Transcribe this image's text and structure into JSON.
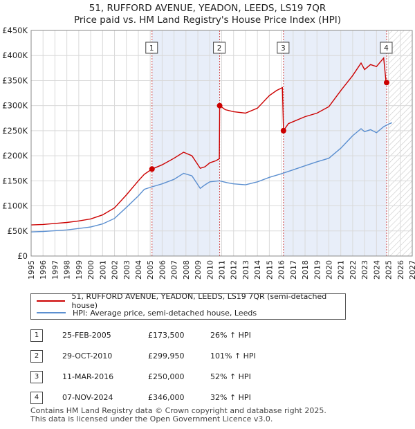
{
  "title_line1": "51, RUFFORD AVENUE, YEADON, LEEDS, LS19 7QR",
  "title_line2": "Price paid vs. HM Land Registry's House Price Index (HPI)",
  "legend": {
    "property": "51, RUFFORD AVENUE, YEADON, LEEDS, LS19 7QR (semi-detached house)",
    "hpi": "HPI: Average price, semi-detached house, Leeds"
  },
  "colors": {
    "property": "#cc0000",
    "hpi": "#5b8fd0",
    "shade": "#e8eef9",
    "grid": "#d9d9d9"
  },
  "sales": [
    {
      "num": "1",
      "date": "25-FEB-2005",
      "price": "£173,500",
      "hpi_change": "26% ↑ HPI"
    },
    {
      "num": "2",
      "date": "29-OCT-2010",
      "price": "£299,950",
      "hpi_change": "101% ↑ HPI"
    },
    {
      "num": "3",
      "date": "11-MAR-2016",
      "price": "£250,000",
      "hpi_change": "52% ↑ HPI"
    },
    {
      "num": "4",
      "date": "07-NOV-2024",
      "price": "£346,000",
      "hpi_change": "32% ↑ HPI"
    }
  ],
  "footer_line1": "Contains HM Land Registry data © Crown copyright and database right 2025.",
  "footer_line2": "This data is licensed under the Open Government Licence v3.0.",
  "chart_data": {
    "type": "line",
    "xlim": [
      1995,
      2027
    ],
    "ylim": [
      0,
      450000
    ],
    "y_ticks": [
      0,
      50000,
      100000,
      150000,
      200000,
      250000,
      300000,
      350000,
      400000,
      450000
    ],
    "y_tick_labels": [
      "£0",
      "£50K",
      "£100K",
      "£150K",
      "£200K",
      "£250K",
      "£300K",
      "£350K",
      "£400K",
      "£450K"
    ],
    "x_ticks": [
      1995,
      1996,
      1997,
      1998,
      1999,
      2000,
      2001,
      2002,
      2003,
      2004,
      2005,
      2006,
      2007,
      2008,
      2009,
      2010,
      2011,
      2012,
      2013,
      2014,
      2015,
      2016,
      2017,
      2018,
      2019,
      2020,
      2021,
      2022,
      2023,
      2024,
      2025,
      2026,
      2027
    ],
    "grid": true,
    "markers": [
      {
        "label": "1",
        "x": 2005.15,
        "y": 173500
      },
      {
        "label": "2",
        "x": 2010.83,
        "y": 299950
      },
      {
        "label": "3",
        "x": 2016.19,
        "y": 250000
      },
      {
        "label": "4",
        "x": 2024.85,
        "y": 346000
      }
    ],
    "shaded_ranges": [
      [
        2005.15,
        2010.83
      ],
      [
        2016.19,
        2024.85
      ]
    ],
    "hatched_from": 2025.0,
    "series": [
      {
        "name": "51, RUFFORD AVENUE, YEADON, LEEDS, LS19 7QR (semi-detached house)",
        "color": "#cc0000",
        "points": [
          [
            1995.0,
            62000
          ],
          [
            1996.0,
            63000
          ],
          [
            1997.0,
            65000
          ],
          [
            1998.0,
            67000
          ],
          [
            1999.0,
            70000
          ],
          [
            2000.0,
            74000
          ],
          [
            2001.0,
            82000
          ],
          [
            2002.0,
            96000
          ],
          [
            2003.0,
            122000
          ],
          [
            2004.0,
            150000
          ],
          [
            2004.5,
            163000
          ],
          [
            2005.15,
            173500
          ],
          [
            2006.0,
            182000
          ],
          [
            2007.0,
            195000
          ],
          [
            2007.8,
            207000
          ],
          [
            2008.5,
            200000
          ],
          [
            2009.2,
            175000
          ],
          [
            2009.6,
            178000
          ],
          [
            2010.0,
            186000
          ],
          [
            2010.5,
            190000
          ],
          [
            2010.8,
            194000
          ],
          [
            2010.83,
            299950
          ],
          [
            2011.3,
            292000
          ],
          [
            2012.0,
            288000
          ],
          [
            2013.0,
            285000
          ],
          [
            2014.0,
            295000
          ],
          [
            2015.0,
            320000
          ],
          [
            2015.6,
            330000
          ],
          [
            2016.1,
            336000
          ],
          [
            2016.19,
            250000
          ],
          [
            2016.6,
            264000
          ],
          [
            2017.0,
            268000
          ],
          [
            2018.0,
            278000
          ],
          [
            2019.0,
            285000
          ],
          [
            2020.0,
            298000
          ],
          [
            2021.0,
            330000
          ],
          [
            2022.0,
            360000
          ],
          [
            2022.7,
            385000
          ],
          [
            2023.0,
            372000
          ],
          [
            2023.5,
            382000
          ],
          [
            2024.0,
            378000
          ],
          [
            2024.6,
            395000
          ],
          [
            2024.8,
            348000
          ],
          [
            2024.85,
            346000
          ]
        ]
      },
      {
        "name": "HPI: Average price, semi-detached house, Leeds",
        "color": "#5b8fd0",
        "points": [
          [
            1995.0,
            48000
          ],
          [
            1996.0,
            49000
          ],
          [
            1997.0,
            50500
          ],
          [
            1998.0,
            52000
          ],
          [
            1999.0,
            55000
          ],
          [
            2000.0,
            58000
          ],
          [
            2001.0,
            64000
          ],
          [
            2002.0,
            75000
          ],
          [
            2003.0,
            97000
          ],
          [
            2004.0,
            120000
          ],
          [
            2004.5,
            133000
          ],
          [
            2005.15,
            138000
          ],
          [
            2006.0,
            144000
          ],
          [
            2007.0,
            153000
          ],
          [
            2007.8,
            165000
          ],
          [
            2008.5,
            160000
          ],
          [
            2009.2,
            135000
          ],
          [
            2009.6,
            142000
          ],
          [
            2010.0,
            148000
          ],
          [
            2010.8,
            150000
          ],
          [
            2011.5,
            146000
          ],
          [
            2012.0,
            144000
          ],
          [
            2013.0,
            142000
          ],
          [
            2014.0,
            148000
          ],
          [
            2015.0,
            157000
          ],
          [
            2016.0,
            164000
          ],
          [
            2017.0,
            172000
          ],
          [
            2018.0,
            180000
          ],
          [
            2019.0,
            188000
          ],
          [
            2020.0,
            195000
          ],
          [
            2021.0,
            215000
          ],
          [
            2022.0,
            240000
          ],
          [
            2022.7,
            254000
          ],
          [
            2023.0,
            248000
          ],
          [
            2023.5,
            252000
          ],
          [
            2024.0,
            246000
          ],
          [
            2024.6,
            258000
          ],
          [
            2025.0,
            263000
          ],
          [
            2025.3,
            266000
          ]
        ]
      }
    ]
  }
}
